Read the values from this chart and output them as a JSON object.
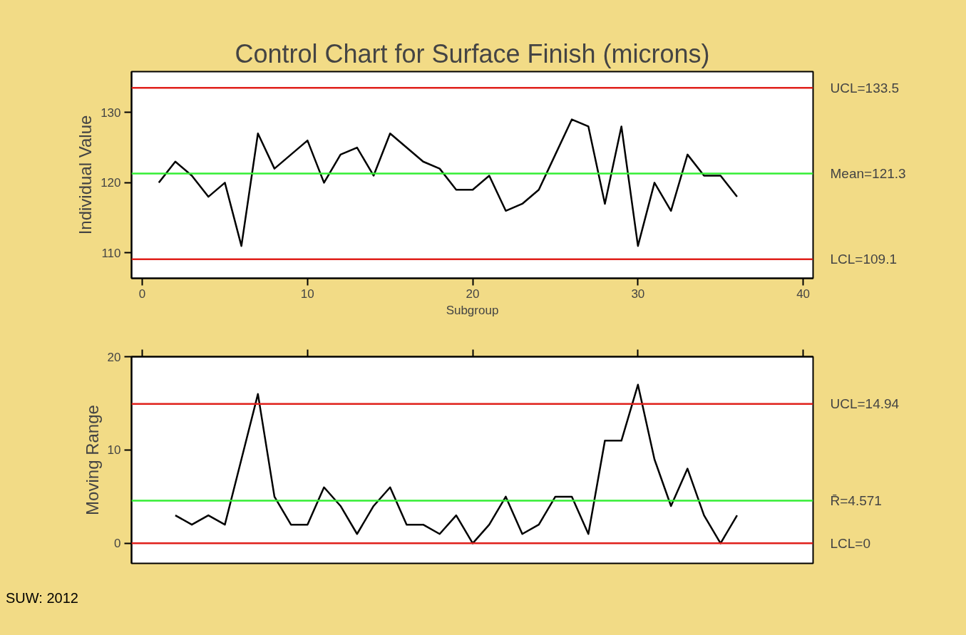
{
  "chart_data": [
    {
      "type": "line",
      "title": "Control Chart for Surface Finish (microns)",
      "xlabel": "Subgroup",
      "ylabel": "Individual Value",
      "x": [
        1,
        2,
        3,
        4,
        5,
        6,
        7,
        8,
        9,
        10,
        11,
        12,
        13,
        14,
        15,
        16,
        17,
        18,
        19,
        20,
        21,
        22,
        23,
        24,
        25,
        26,
        27,
        28,
        29,
        30,
        31,
        32,
        33,
        34,
        35,
        36
      ],
      "series": [
        {
          "color": "#000000",
          "values": [
            120,
            123,
            121,
            118,
            120,
            111,
            127,
            122,
            124,
            126,
            120,
            124,
            125,
            121,
            127,
            125,
            123,
            122,
            119,
            119,
            121,
            116,
            117,
            119,
            124,
            129,
            128,
            117,
            128,
            111,
            120,
            116,
            124,
            121,
            121,
            118
          ]
        }
      ],
      "xlim": [
        -0.65,
        40.6
      ],
      "ylim": [
        106.4,
        135.8
      ],
      "xticks": [
        0,
        10,
        20,
        30,
        40
      ],
      "yticks": [
        110,
        120,
        130
      ],
      "ref_lines": [
        {
          "axis": "y",
          "value": 133.5,
          "label": "UCL=133.5",
          "color": "#e0201b"
        },
        {
          "axis": "y",
          "value": 121.3,
          "label": "Mean=121.3",
          "color": "#33ee33"
        },
        {
          "axis": "y",
          "value": 109.1,
          "label": "LCL=109.1",
          "color": "#e0201b"
        }
      ],
      "grid": false
    },
    {
      "type": "line",
      "ylabel": "Moving Range",
      "x": [
        2,
        3,
        4,
        5,
        6,
        7,
        8,
        9,
        10,
        11,
        12,
        13,
        14,
        15,
        16,
        17,
        18,
        19,
        20,
        21,
        22,
        23,
        24,
        25,
        26,
        27,
        28,
        29,
        30,
        31,
        32,
        33,
        34,
        35,
        36
      ],
      "series": [
        {
          "color": "#000000",
          "values": [
            3,
            2,
            3,
            2,
            9,
            16,
            5,
            2,
            2,
            6,
            4,
            1,
            4,
            6,
            2,
            2,
            1,
            3,
            0,
            2,
            5,
            1,
            2,
            5,
            5,
            1,
            11,
            11,
            17,
            9,
            4,
            8,
            3,
            0,
            3
          ]
        }
      ],
      "xlim": [
        -0.65,
        40.6
      ],
      "ylim": [
        -2.15,
        20
      ],
      "xticks": [
        {
          "value": 0,
          "label": null
        },
        {
          "value": 10,
          "label": null
        },
        {
          "value": 20,
          "label": null
        },
        {
          "value": 30,
          "label": null
        },
        {
          "value": 40,
          "label": null
        }
      ],
      "yticks": [
        0,
        10,
        20
      ],
      "tick_labels": "y",
      "ref_lines": [
        {
          "axis": "y",
          "value": 14.94,
          "label": "UCL=14.94",
          "color": "#e0201b"
        },
        {
          "axis": "y",
          "value": 4.571,
          "label": "R̄=4.571",
          "color": "#33ee33"
        },
        {
          "axis": "y",
          "value": 0,
          "label": "LCL=0",
          "color": "#e0201b"
        }
      ],
      "annotations": [
        "SUW: 2012"
      ],
      "grid": false
    }
  ]
}
